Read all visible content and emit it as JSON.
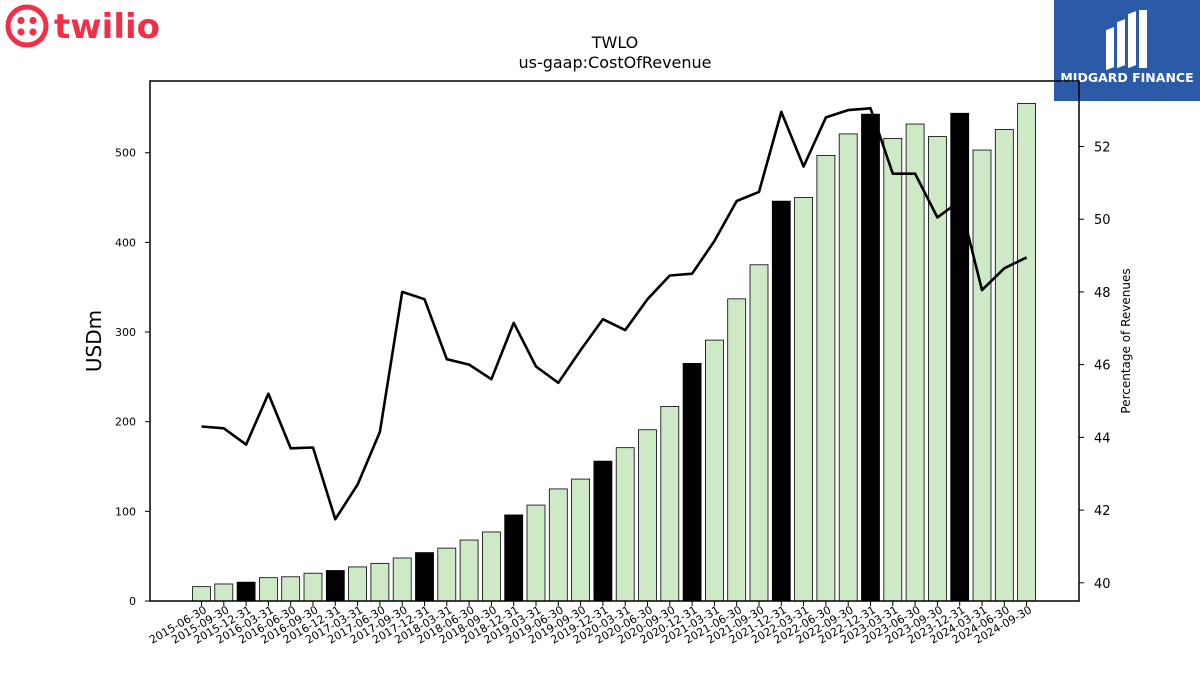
{
  "brand": {
    "left_logo_text": "twilio",
    "left_logo_color": "#f22f46",
    "right_logo_text": "MIDGARD FINANCE",
    "right_logo_bg": "#2b5aa8"
  },
  "chart_data": {
    "type": "bar",
    "title": "TWLO",
    "subtitle": "us-gaap:CostOfRevenue",
    "ylabel": "USDm",
    "y2label": "Percentage of Revenues",
    "ylim": [
      0,
      580
    ],
    "y2lim": [
      39.5,
      53.8
    ],
    "yticks": [
      0,
      100,
      200,
      300,
      400,
      500
    ],
    "y2ticks": [
      40,
      42,
      44,
      46,
      48,
      50,
      52
    ],
    "colors": {
      "bar_default": "#cde9c5",
      "bar_year_end": "#000000",
      "line": "#000000"
    },
    "categories": [
      "2015-06-30",
      "2015-09-30",
      "2015-12-31",
      "2016-03-31",
      "2016-06-30",
      "2016-09-30",
      "2016-12-31",
      "2017-03-31",
      "2017-06-30",
      "2017-09-30",
      "2017-12-31",
      "2018-03-31",
      "2018-06-30",
      "2018-09-30",
      "2018-12-31",
      "2019-03-31",
      "2019-06-30",
      "2019-09-30",
      "2019-12-31",
      "2020-03-31",
      "2020-06-30",
      "2020-09-30",
      "2020-12-31",
      "2021-03-31",
      "2021-06-30",
      "2021-09-30",
      "2021-12-31",
      "2022-03-31",
      "2022-06-30",
      "2022-09-30",
      "2022-12-31",
      "2023-03-31",
      "2023-06-30",
      "2023-09-30",
      "2023-12-31",
      "2024-03-31",
      "2024-06-30",
      "2024-09-30"
    ],
    "series": [
      {
        "type": "bar",
        "values": [
          16,
          19,
          21,
          26,
          27,
          31,
          34,
          38,
          42,
          48,
          54,
          59,
          68,
          77,
          96,
          107,
          125,
          136,
          156,
          171,
          191,
          217,
          265,
          291,
          337,
          375,
          446,
          450,
          497,
          521,
          543,
          516,
          532,
          518,
          544,
          503,
          526,
          555
        ]
      },
      {
        "type": "line",
        "axis": "right",
        "values": [
          44.3,
          44.25,
          43.8,
          45.2,
          43.7,
          43.72,
          41.75,
          42.7,
          44.15,
          48.0,
          47.8,
          46.15,
          46.0,
          45.6,
          47.15,
          45.95,
          45.5,
          46.4,
          47.25,
          46.95,
          47.8,
          48.45,
          48.5,
          49.4,
          50.5,
          50.75,
          52.95,
          51.45,
          52.8,
          53.0,
          53.05,
          51.25,
          51.25,
          50.05,
          50.5,
          48.05,
          48.65,
          48.95
        ]
      }
    ]
  }
}
